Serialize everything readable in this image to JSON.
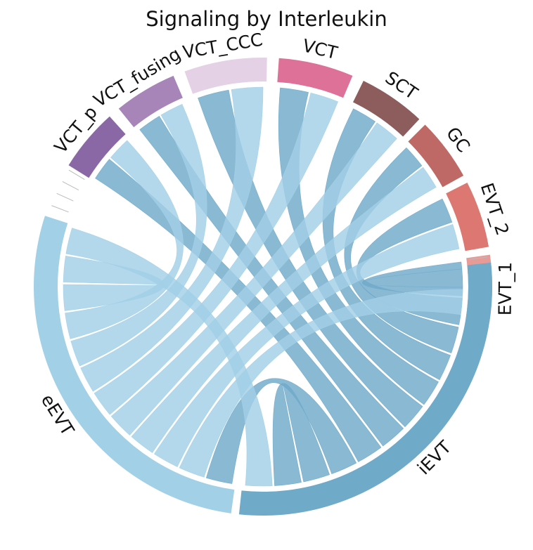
{
  "title": "Signaling by Interleukin",
  "chart_data": {
    "type": "chord",
    "title": "Signaling by Interleukin",
    "segments": [
      {
        "name": "EVT_1",
        "color": "#E89A97",
        "start_deg": 352,
        "end_deg": 369
      },
      {
        "name": "EVT_2",
        "color": "#DC7871",
        "start_deg": 333,
        "end_deg": 350
      },
      {
        "name": "GC",
        "color": "#BF6966",
        "start_deg": 315,
        "end_deg": 331
      },
      {
        "name": "SCT",
        "color": "#8C5D5C",
        "start_deg": 296,
        "end_deg": 313
      },
      {
        "name": "VCT",
        "color": "#DE7198",
        "start_deg": 274,
        "end_deg": 293
      },
      {
        "name": "VCT_CCC",
        "color": "#E5D1E6",
        "start_deg": 250,
        "end_deg": 271
      },
      {
        "name": "VCT_fusing",
        "color": "#A785B9",
        "start_deg": 231,
        "end_deg": 247
      },
      {
        "name": "VCT_p",
        "color": "#8A68A6",
        "start_deg": 212,
        "end_deg": 228
      },
      {
        "name": "eEVT",
        "color": "#A2D0E6",
        "start_deg": 98,
        "end_deg": 198
      },
      {
        "name": "iEVT",
        "color": "#6FAAC9",
        "start_deg": -6,
        "end_deg": 96
      }
    ],
    "links": [
      {
        "source": "iEVT",
        "target": "EVT_1",
        "weight": 1
      },
      {
        "source": "iEVT",
        "target": "EVT_2",
        "weight": 1
      },
      {
        "source": "iEVT",
        "target": "GC",
        "weight": 1
      },
      {
        "source": "iEVT",
        "target": "SCT",
        "weight": 1
      },
      {
        "source": "iEVT",
        "target": "VCT",
        "weight": 1
      },
      {
        "source": "iEVT",
        "target": "VCT_CCC",
        "weight": 1
      },
      {
        "source": "iEVT",
        "target": "VCT_fusing",
        "weight": 1
      },
      {
        "source": "iEVT",
        "target": "VCT_p",
        "weight": 1
      },
      {
        "source": "iEVT",
        "target": "eEVT",
        "weight": 1
      },
      {
        "source": "iEVT",
        "target": "iEVT",
        "weight": 1
      },
      {
        "source": "eEVT",
        "target": "EVT_1",
        "weight": 1
      },
      {
        "source": "eEVT",
        "target": "EVT_2",
        "weight": 1
      },
      {
        "source": "eEVT",
        "target": "GC",
        "weight": 1
      },
      {
        "source": "eEVT",
        "target": "SCT",
        "weight": 1
      },
      {
        "source": "eEVT",
        "target": "VCT",
        "weight": 1
      },
      {
        "source": "eEVT",
        "target": "VCT_CCC",
        "weight": 1
      },
      {
        "source": "eEVT",
        "target": "VCT_fusing",
        "weight": 1
      },
      {
        "source": "eEVT",
        "target": "VCT_p",
        "weight": 1
      },
      {
        "source": "eEVT",
        "target": "eEVT",
        "weight": 1
      },
      {
        "source": "eEVT",
        "target": "iEVT",
        "weight": 1
      }
    ]
  }
}
